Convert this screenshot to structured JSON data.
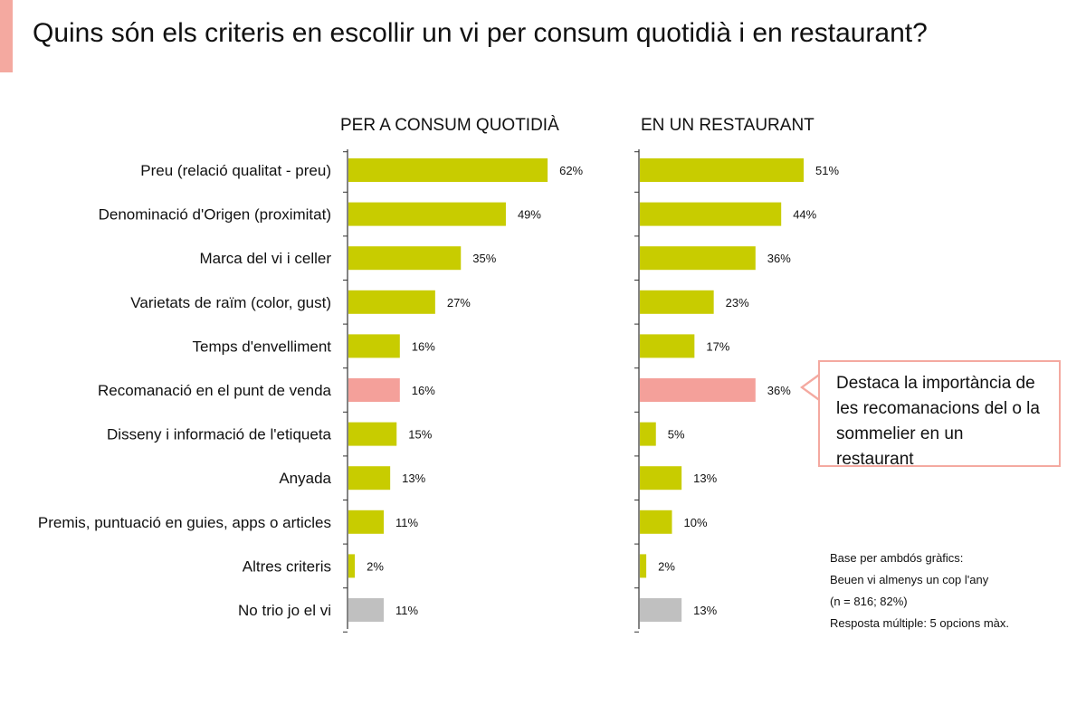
{
  "title": "Quins són els criteris en escollir un vi per consum quotidià i en restaurant?",
  "colors": {
    "accent": "#f4a9a0",
    "bar": "#c8cc00",
    "highlight": "#f4a09a",
    "neutral": "#c0c0c0"
  },
  "callout": {
    "lines": [
      "Destaca la importància de",
      "les recomanacions del o la",
      "sommelier en un restaurant"
    ]
  },
  "base_note": {
    "lines": [
      "Base per ambdós gràfics:",
      "Beuen vi almenys un cop l'any",
      "(n = 816; 82%)",
      "Resposta múltiple: 5 opcions màx."
    ]
  },
  "chart_data": [
    {
      "type": "bar",
      "orientation": "horizontal",
      "title": "PER A CONSUM QUOTIDIÀ",
      "categories": [
        "Preu (relació qualitat - preu)",
        "Denominació d'Origen (proximitat)",
        "Marca del vi i celler",
        "Varietats de raïm (color, gust)",
        "Temps d'envelliment",
        "Recomanació en el punt de venda",
        "Disseny i informació de l'etiqueta",
        "Anyada",
        "Premis, puntuació en guies, apps o articles",
        "Altres criteris",
        "No trio jo el vi"
      ],
      "values": [
        62,
        49,
        35,
        27,
        16,
        16,
        15,
        13,
        11,
        2,
        11
      ],
      "labels": [
        "62%",
        "49%",
        "35%",
        "27%",
        "16%",
        "16%",
        "15%",
        "13%",
        "11%",
        "2%",
        "11%"
      ],
      "bar_colors": [
        "bar",
        "bar",
        "bar",
        "bar",
        "bar",
        "highlight",
        "bar",
        "bar",
        "bar",
        "bar",
        "neutral"
      ],
      "xlim": [
        0,
        100
      ]
    },
    {
      "type": "bar",
      "orientation": "horizontal",
      "title": "EN UN RESTAURANT",
      "categories": [
        "Preu (relació qualitat - preu)",
        "Denominació d'Origen (proximitat)",
        "Marca del vi i celler",
        "Varietats de raïm (color, gust)",
        "Temps d'envelliment",
        "Recomanació en el punt de venda",
        "Disseny i informació de l'etiqueta",
        "Anyada",
        "Premis, puntuació en guies, apps o articles",
        "Altres criteris",
        "No trio jo el vi"
      ],
      "values": [
        51,
        44,
        36,
        23,
        17,
        36,
        5,
        13,
        10,
        2,
        13
      ],
      "labels": [
        "51%",
        "44%",
        "36%",
        "23%",
        "17%",
        "36%",
        "5%",
        "13%",
        "10%",
        "2%",
        "13%"
      ],
      "bar_colors": [
        "bar",
        "bar",
        "bar",
        "bar",
        "bar",
        "highlight",
        "bar",
        "bar",
        "bar",
        "bar",
        "neutral"
      ],
      "xlim": [
        0,
        100
      ]
    }
  ]
}
